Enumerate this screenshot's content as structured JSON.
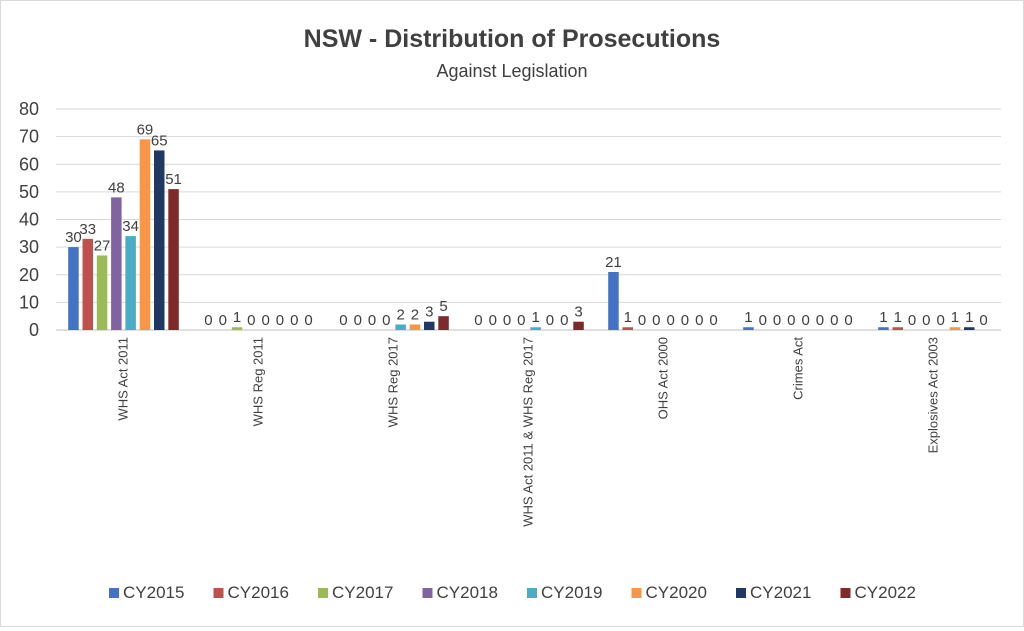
{
  "chart_data": {
    "type": "bar",
    "title": "NSW - Distribution of Prosecutions",
    "subtitle": "Against Legislation",
    "xlabel": "",
    "ylabel": "",
    "ylim": [
      0,
      80
    ],
    "y_ticks": [
      0,
      10,
      20,
      30,
      40,
      50,
      60,
      70,
      80
    ],
    "grid": true,
    "legend_position": "bottom",
    "categories": [
      "WHS Act 2011",
      "WHS Reg 2011",
      "WHS Reg 2017",
      "WHS Act 2011 & WHS Reg 2017",
      "OHS Act 2000",
      "Crimes Act",
      "Explosives Act 2003"
    ],
    "series": [
      {
        "name": "CY2015",
        "color": "#4472c4",
        "values": [
          30,
          0,
          0,
          0,
          21,
          1,
          1
        ]
      },
      {
        "name": "CY2016",
        "color": "#c0504d",
        "values": [
          33,
          0,
          0,
          0,
          1,
          0,
          1
        ]
      },
      {
        "name": "CY2017",
        "color": "#9bbb59",
        "values": [
          27,
          1,
          0,
          0,
          0,
          0,
          0
        ]
      },
      {
        "name": "CY2018",
        "color": "#8064a2",
        "values": [
          48,
          0,
          0,
          0,
          0,
          0,
          0
        ]
      },
      {
        "name": "CY2019",
        "color": "#4bacc6",
        "values": [
          34,
          0,
          2,
          1,
          0,
          0,
          0
        ]
      },
      {
        "name": "CY2020",
        "color": "#f79646",
        "values": [
          69,
          0,
          2,
          0,
          0,
          0,
          1
        ]
      },
      {
        "name": "CY2021",
        "color": "#1f3864",
        "values": [
          65,
          0,
          3,
          0,
          0,
          0,
          1
        ]
      },
      {
        "name": "CY2022",
        "color": "#7f2a2a",
        "values": [
          51,
          0,
          5,
          3,
          0,
          0,
          0
        ]
      }
    ]
  }
}
